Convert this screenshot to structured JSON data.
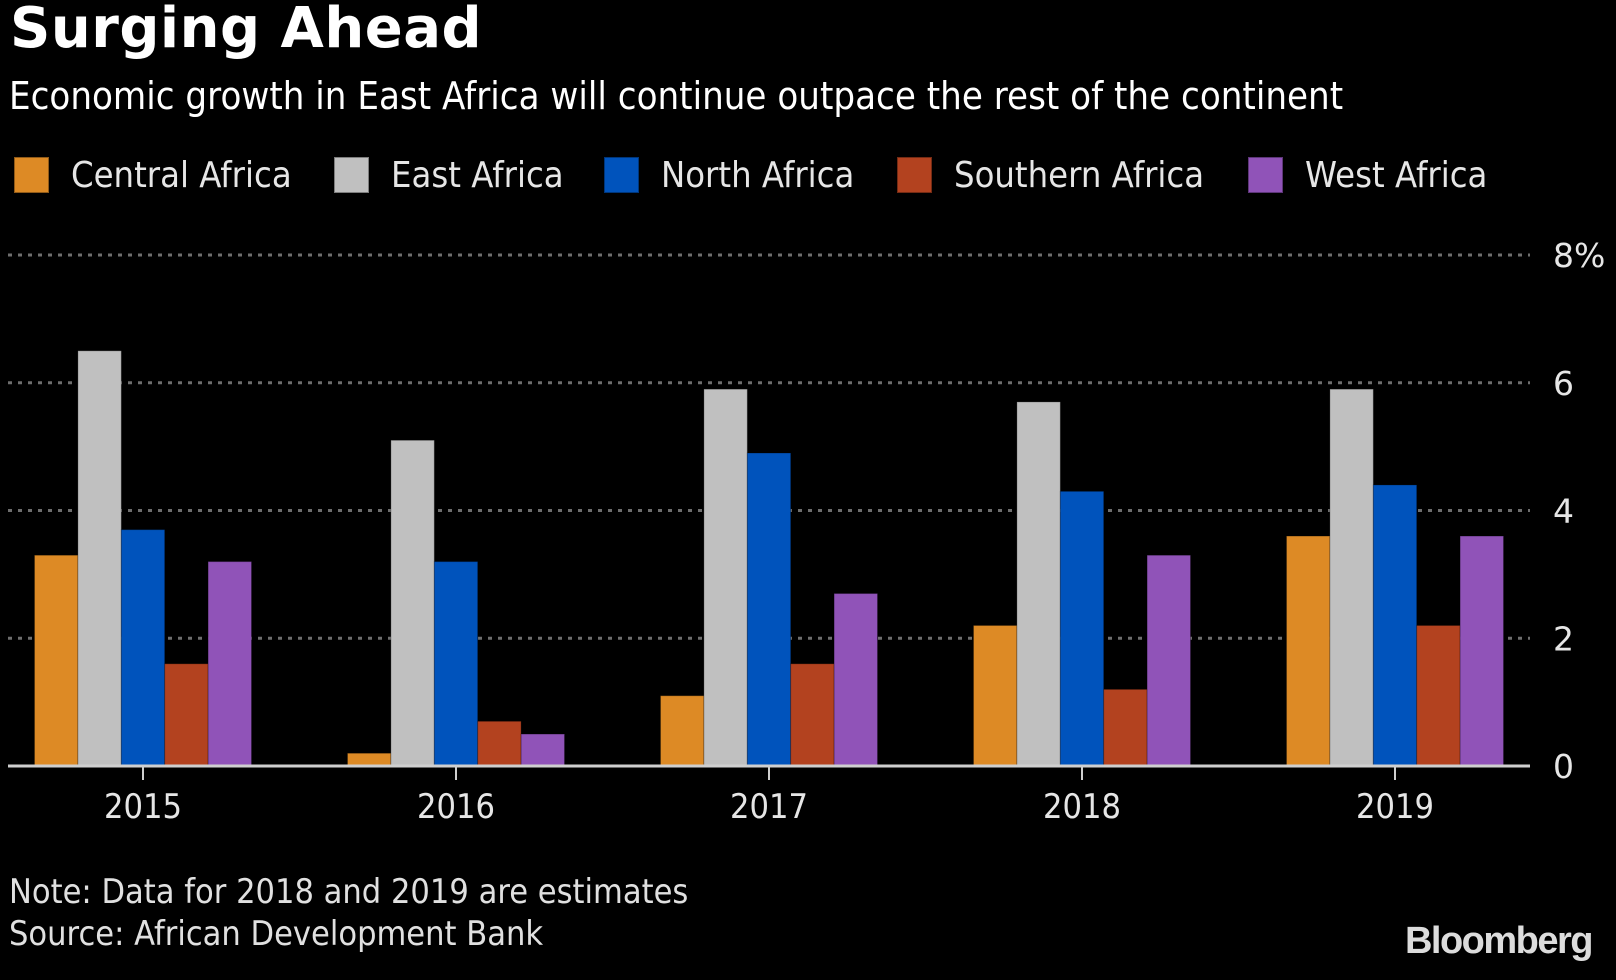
{
  "header": {
    "title": "Surging Ahead",
    "subtitle": "Economic growth in East Africa will continue outpace the rest of the continent"
  },
  "footer": {
    "note": "Note: Data for 2018 and 2019 are estimates",
    "source": "Source: African Development Bank",
    "logo": "Bloomberg"
  },
  "chart_data": {
    "type": "bar",
    "title": "Surging Ahead",
    "subtitle": "Economic growth in East Africa will continue outpace the rest of the continent",
    "xlabel": "",
    "ylabel": "",
    "categories": [
      "2015",
      "2016",
      "2017",
      "2018",
      "2019"
    ],
    "series": [
      {
        "name": "Central Africa",
        "color": "#DD8A25",
        "values": [
          3.3,
          0.2,
          1.1,
          2.2,
          3.6
        ]
      },
      {
        "name": "East Africa",
        "color": "#C0C0C0",
        "values": [
          6.5,
          5.1,
          5.9,
          5.7,
          5.9
        ]
      },
      {
        "name": "North Africa",
        "color": "#0053BC",
        "values": [
          3.7,
          3.2,
          4.9,
          4.3,
          4.4
        ]
      },
      {
        "name": "Southern Africa",
        "color": "#B3421F",
        "values": [
          1.6,
          0.7,
          1.6,
          1.2,
          2.2
        ]
      },
      {
        "name": "West Africa",
        "color": "#9053B8",
        "values": [
          3.2,
          0.5,
          2.7,
          3.3,
          3.6
        ]
      }
    ],
    "ylim": [
      0,
      8
    ],
    "yticks": [
      0,
      2,
      4,
      6,
      8
    ],
    "ytick_labels": [
      "0",
      "2",
      "4",
      "6",
      "8%"
    ],
    "y_axis_side": "right",
    "grid": true,
    "grid_style": "dotted",
    "legend_position": "top-left",
    "note": "Note: Data for 2018 and 2019 are estimates",
    "source": "Source: African Development Bank"
  }
}
